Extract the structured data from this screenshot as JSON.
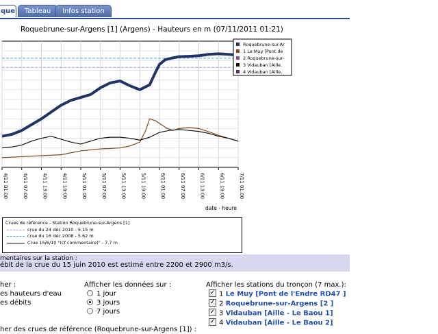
{
  "tabs": [
    {
      "label": "que",
      "active": true
    },
    {
      "label": "Tableau",
      "active": false
    },
    {
      "label": "Infos station",
      "active": false
    }
  ],
  "chart_title": "Roquebrune-sur-Argens [1] (Argens) - Hauteurs en m (07/11/2011 01:21)",
  "chart_data": {
    "type": "line",
    "x_tick_labels": [
      "4/11 01:00",
      "4/11 07:00",
      "4/11 13:00",
      "4/11 19:00",
      "5/11 01:00",
      "5/11 07:00",
      "5/11 13:00",
      "5/11 19:00",
      "6/11 01:00",
      "6/11 07:00",
      "6/11 13:00",
      "6/11 19:00",
      "7/11 01:00"
    ],
    "xlabel": "date - heure",
    "ylabel": "",
    "grid": true,
    "legend_placement": "top-right",
    "legend": [
      "Roquebrune-sur-Ar",
      "1 Le Muy [Pont de",
      "2 Roquebrune-sur-",
      "3 Vidauban [Aille.",
      "4 Vidauban [Aille."
    ],
    "reference_lines": [
      {
        "name": "crue du 24 déc 2010",
        "value": 5.15,
        "color": "#a0a0e8"
      },
      {
        "name": "crue du 16 déc 2008",
        "value": 5.62,
        "color": "#4aa0d0"
      }
    ],
    "series": [
      {
        "name": "Roquebrune-sur-Ar",
        "color": "#223366",
        "x": [
          0,
          0.5,
          1,
          1.5,
          2,
          2.5,
          3,
          3.5,
          4,
          4.5,
          5,
          5.5,
          6,
          6.5,
          7,
          7.5,
          7.8,
          8,
          8.3,
          8.6,
          9,
          9.5,
          10,
          10.5,
          11,
          11.5,
          12
        ],
        "y": [
          1.6,
          1.7,
          1.9,
          2.2,
          2.5,
          2.85,
          3.2,
          3.45,
          3.6,
          3.75,
          4.1,
          4.35,
          4.45,
          4.2,
          4.0,
          4.25,
          4.9,
          5.3,
          5.55,
          5.62,
          5.7,
          5.72,
          5.75,
          5.82,
          5.85,
          5.82,
          5.78
        ]
      },
      {
        "name": "1 Le Muy [Pont de",
        "color": "#7a4a20",
        "x": [
          0,
          1,
          2,
          3,
          4,
          5,
          6,
          6.5,
          7,
          7.3,
          7.5,
          7.8,
          8.1,
          8.4,
          8.7,
          9,
          9.5,
          10,
          10.3,
          10.6,
          11,
          11.5,
          12
        ],
        "y": [
          0.5,
          0.55,
          0.6,
          0.65,
          0.85,
          0.95,
          1.0,
          1.1,
          1.3,
          1.9,
          2.5,
          2.4,
          2.2,
          2.0,
          1.9,
          2.0,
          2.05,
          2.0,
          1.9,
          1.8,
          1.65,
          1.5,
          1.35
        ]
      },
      {
        "name": "3 Vidauban [Aille.",
        "color": "#111111",
        "x": [
          0,
          0.5,
          1,
          1.5,
          2,
          2.5,
          3,
          3.5,
          4,
          4.5,
          5,
          5.5,
          6,
          6.5,
          7,
          7.5,
          8,
          8.5,
          9,
          9.5,
          10,
          10.5,
          11,
          11.5,
          12
        ],
        "y": [
          1.0,
          1.05,
          1.15,
          1.35,
          1.5,
          1.6,
          1.45,
          1.3,
          1.2,
          1.35,
          1.5,
          1.55,
          1.55,
          1.5,
          1.4,
          1.55,
          1.8,
          1.9,
          1.95,
          1.9,
          1.85,
          1.75,
          1.6,
          1.5,
          1.35
        ]
      }
    ]
  },
  "reference_box": {
    "title": "Crues de référence - Station Roquebrune-sur-Argens [1]",
    "items": [
      {
        "label": "crue du 24 déc 2010 - 5.15 m",
        "color": "#a0a0e8",
        "style": "dashed"
      },
      {
        "label": "crue du 16 déc 2008 - 5.62 m",
        "color": "#4aa0d0",
        "style": "dashed"
      },
      {
        "label": "Crue 15/6/10 \"(cf commentaire)\" - 7.7 m",
        "color": "#000000",
        "style": "solid"
      }
    ]
  },
  "comments": {
    "title": "mentaires sur la station :",
    "text": "ébit de la crue du 15 juin 2010 est estimé entre 2200 et 2900 m3/s."
  },
  "display": {
    "title": "her :",
    "options": [
      "es hauteurs d'eau",
      "es débits"
    ]
  },
  "days": {
    "title": "Afficher les données sur :",
    "options": [
      {
        "label": "1 jour",
        "selected": false
      },
      {
        "label": "3 jours",
        "selected": true
      },
      {
        "label": "7 jours",
        "selected": false
      }
    ]
  },
  "stations": {
    "title": "Afficher les stations du tronçon (7 max.):",
    "items": [
      {
        "num": "1",
        "label": "Le Muy [Pont de l'Endre RD47 ]",
        "checked": true
      },
      {
        "num": "2",
        "label": "Roquebrune-sur-Argens [2 ]",
        "checked": true
      },
      {
        "num": "3",
        "label": "Vidauban [Aille - Le Baou 1]",
        "checked": true
      },
      {
        "num": "4",
        "label": "Vidauban [Aille - Le Baou 2]",
        "checked": true
      }
    ]
  },
  "ref_toggle_label": "her des crues de référence (Roquebrune-sur-Argens [1]) :"
}
